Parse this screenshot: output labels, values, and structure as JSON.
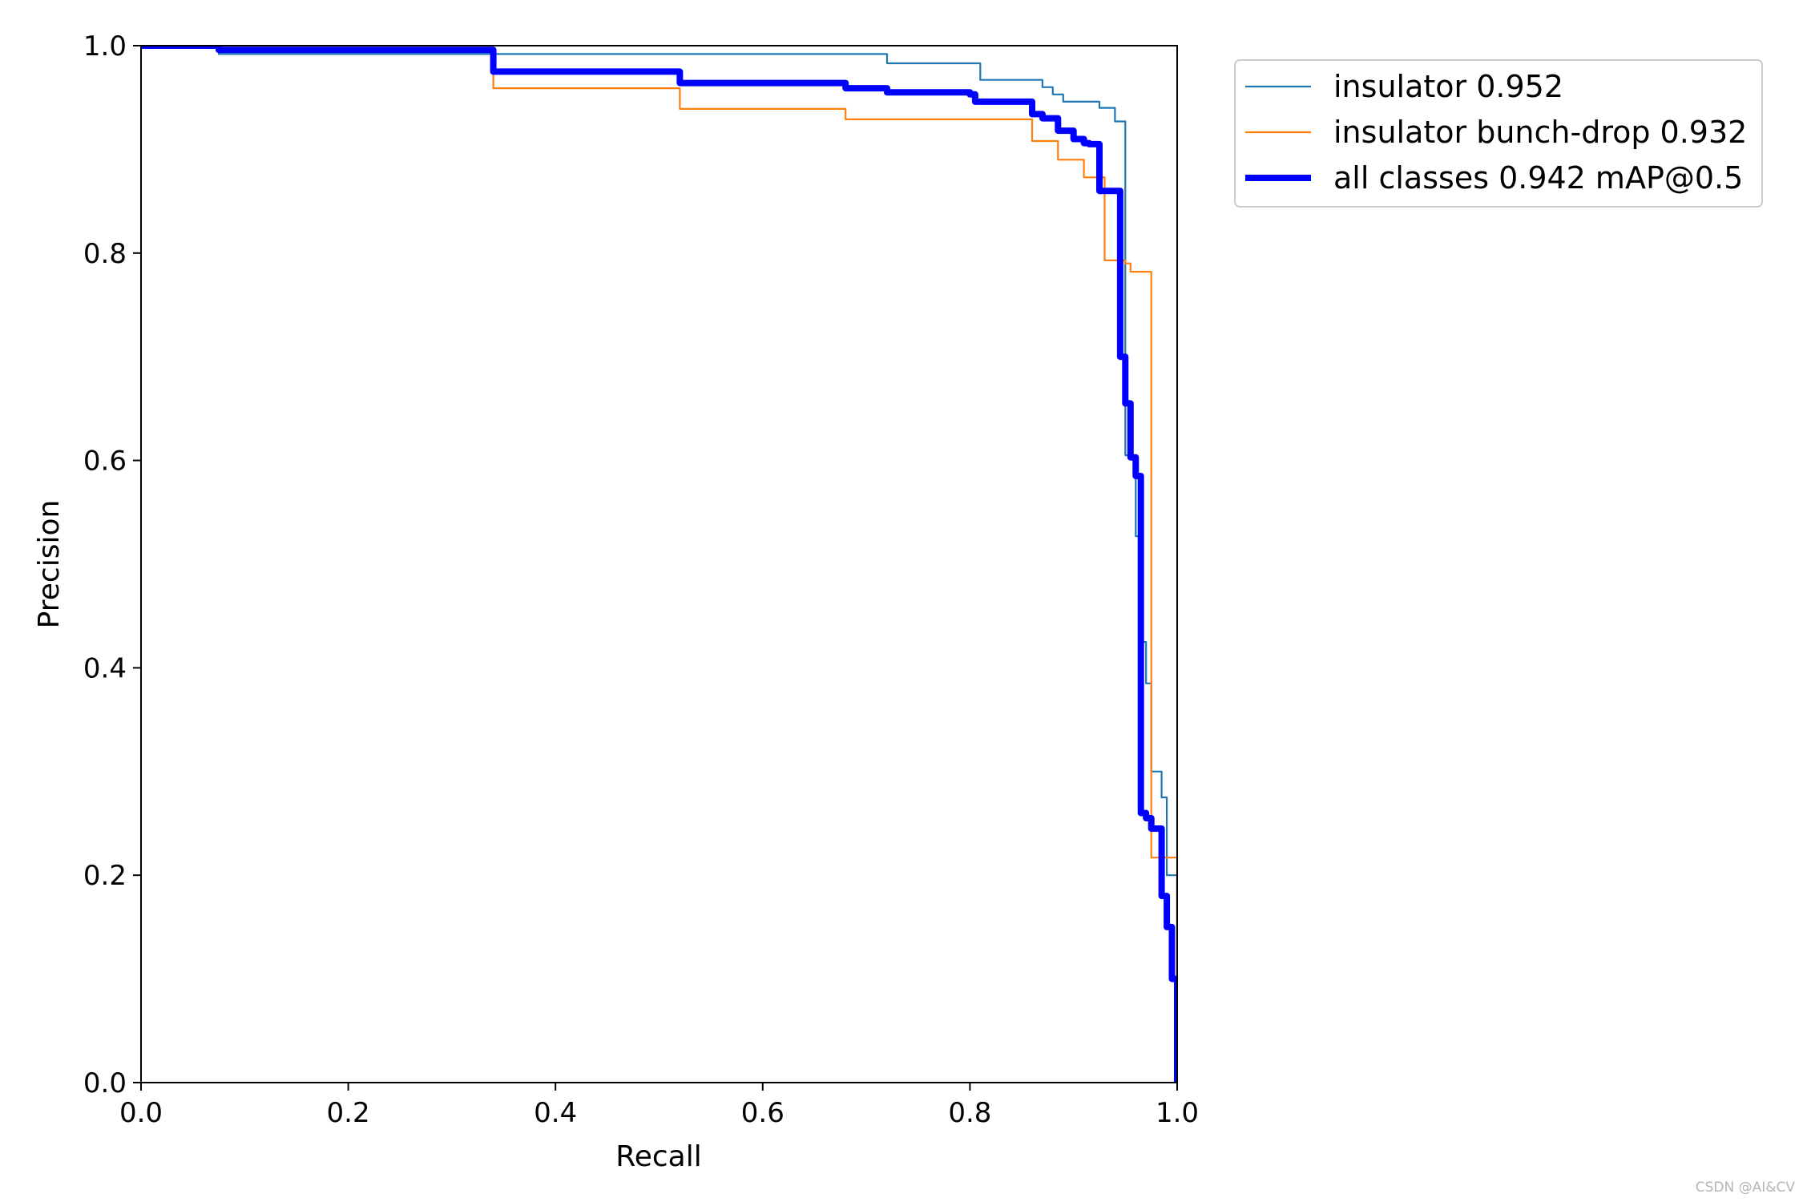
{
  "chart_data": {
    "type": "line",
    "title": "",
    "xlabel": "Recall",
    "ylabel": "Precision",
    "xlim": [
      0,
      1
    ],
    "ylim": [
      0,
      1
    ],
    "xticks": [
      "0.0",
      "0.2",
      "0.4",
      "0.6",
      "0.8",
      "1.0"
    ],
    "yticks": [
      "0.0",
      "0.2",
      "0.4",
      "0.6",
      "0.8",
      "1.0"
    ],
    "grid": false,
    "legend_position": "outside-top-right",
    "series": [
      {
        "name": "insulator 0.952",
        "color": "#1f77b4",
        "width": "thin",
        "x": [
          0,
          0.075,
          0.075,
          0.34,
          0.34,
          0.72,
          0.72,
          0.81,
          0.81,
          0.87,
          0.87,
          0.88,
          0.88,
          0.89,
          0.89,
          0.925,
          0.925,
          0.94,
          0.94,
          0.95,
          0.95,
          0.96,
          0.96,
          0.965,
          0.965,
          0.97,
          0.97,
          0.975,
          0.975,
          0.985,
          0.985,
          0.99,
          0.99,
          1.0,
          1.0
        ],
        "y": [
          1.0,
          1.0,
          0.992,
          0.992,
          0.992,
          0.992,
          0.983,
          0.983,
          0.967,
          0.967,
          0.96,
          0.96,
          0.953,
          0.953,
          0.946,
          0.946,
          0.94,
          0.94,
          0.927,
          0.927,
          0.605,
          0.605,
          0.527,
          0.527,
          0.425,
          0.425,
          0.385,
          0.385,
          0.3,
          0.3,
          0.275,
          0.275,
          0.2,
          0.2,
          0.0
        ]
      },
      {
        "name": "insulator bunch-drop 0.932",
        "color": "#ff7f0e",
        "width": "thin",
        "x": [
          0,
          0.34,
          0.34,
          0.52,
          0.52,
          0.68,
          0.68,
          0.86,
          0.86,
          0.885,
          0.885,
          0.91,
          0.91,
          0.93,
          0.93,
          0.95,
          0.95,
          0.955,
          0.955,
          0.975,
          0.975,
          0.985,
          0.985,
          1.0,
          1.0
        ],
        "y": [
          1.0,
          1.0,
          0.959,
          0.959,
          0.939,
          0.939,
          0.929,
          0.929,
          0.908,
          0.908,
          0.89,
          0.89,
          0.873,
          0.873,
          0.793,
          0.793,
          0.79,
          0.79,
          0.782,
          0.782,
          0.217,
          0.217,
          0.217,
          0.217,
          0.0
        ]
      },
      {
        "name": "all classes 0.942 mAP@0.5",
        "color": "#0000ff",
        "width": "thick",
        "x": [
          0,
          0.075,
          0.075,
          0.34,
          0.34,
          0.52,
          0.52,
          0.68,
          0.68,
          0.72,
          0.72,
          0.8,
          0.8,
          0.805,
          0.805,
          0.86,
          0.86,
          0.87,
          0.87,
          0.885,
          0.885,
          0.9,
          0.9,
          0.91,
          0.91,
          0.915,
          0.915,
          0.925,
          0.925,
          0.93,
          0.93,
          0.945,
          0.945,
          0.95,
          0.95,
          0.955,
          0.955,
          0.96,
          0.96,
          0.965,
          0.965,
          0.97,
          0.97,
          0.975,
          0.975,
          0.98,
          0.98,
          0.985,
          0.985,
          0.99,
          0.99,
          0.995,
          0.995,
          1.0,
          1.0
        ],
        "y": [
          1.0,
          1.0,
          0.996,
          0.996,
          0.975,
          0.975,
          0.964,
          0.964,
          0.959,
          0.959,
          0.955,
          0.955,
          0.953,
          0.953,
          0.946,
          0.946,
          0.934,
          0.934,
          0.93,
          0.93,
          0.918,
          0.918,
          0.91,
          0.91,
          0.906,
          0.906,
          0.905,
          0.905,
          0.86,
          0.86,
          0.86,
          0.86,
          0.7,
          0.7,
          0.655,
          0.655,
          0.603,
          0.603,
          0.585,
          0.585,
          0.26,
          0.26,
          0.255,
          0.255,
          0.245,
          0.245,
          0.245,
          0.245,
          0.18,
          0.18,
          0.15,
          0.15,
          0.1,
          0.1,
          0.0
        ]
      }
    ]
  },
  "watermark": "CSDN @AI&CV"
}
